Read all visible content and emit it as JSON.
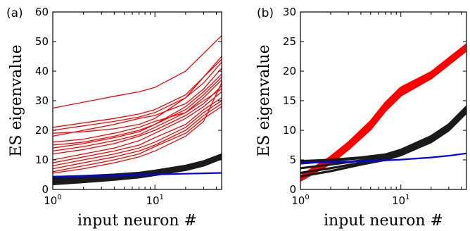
{
  "chart_data": [
    {
      "type": "line",
      "panel_label": "(a)",
      "xlabel": "input neuron #",
      "ylabel": "ES eigenvalue",
      "xscale": "log",
      "xlim": [
        1,
        45
      ],
      "ylim": [
        0,
        60
      ],
      "yticks": [
        "0",
        "10",
        "20",
        "30",
        "40",
        "50",
        "60"
      ],
      "xticks": [
        {
          "base": "10",
          "exp": "0"
        },
        {
          "base": "10",
          "exp": "1"
        }
      ],
      "legend": "none",
      "grid": false,
      "groups": [
        {
          "color": "#ff0000",
          "series": [
            {
              "x": [
                1,
                2,
                4,
                7,
                10,
                20,
                30,
                45
              ],
              "y": [
                27.5,
                29.5,
                31.5,
                33,
                34.5,
                40,
                46,
                52
              ]
            },
            {
              "x": [
                1,
                2,
                4,
                7,
                10,
                20,
                30,
                45
              ],
              "y": [
                20,
                21.5,
                23,
                24.5,
                26,
                31,
                38,
                45
              ]
            },
            {
              "x": [
                1,
                2,
                4,
                7,
                10,
                20,
                30,
                45
              ],
              "y": [
                19,
                19.5,
                20.5,
                22,
                24,
                31,
                36,
                43
              ]
            },
            {
              "x": [
                1,
                2,
                4,
                7,
                10,
                20,
                30,
                45
              ],
              "y": [
                15,
                16,
                18,
                20,
                22,
                28,
                33,
                39
              ]
            },
            {
              "x": [
                1,
                2,
                4,
                7,
                10,
                20,
                30,
                45
              ],
              "y": [
                14,
                15.5,
                17.5,
                19.5,
                22,
                27,
                32,
                38
              ]
            },
            {
              "x": [
                1,
                2,
                4,
                7,
                10,
                20,
                30,
                45
              ],
              "y": [
                13,
                14.5,
                16.5,
                18.5,
                21,
                26,
                31,
                37
              ]
            },
            {
              "x": [
                1,
                2,
                4,
                7,
                10,
                20,
                30,
                45
              ],
              "y": [
                16,
                17,
                19,
                21,
                23,
                26,
                30,
                34
              ]
            },
            {
              "x": [
                1,
                2,
                4,
                7,
                10,
                20,
                30,
                45
              ],
              "y": [
                12,
                13.5,
                15.5,
                18,
                20,
                25,
                29,
                35
              ]
            },
            {
              "x": [
                1,
                2,
                4,
                7,
                10,
                20,
                30,
                45
              ],
              "y": [
                10,
                12,
                14,
                16.5,
                19,
                24,
                28,
                33
              ]
            },
            {
              "x": [
                1,
                2,
                4,
                7,
                10,
                20,
                30,
                45
              ],
              "y": [
                9,
                11,
                13,
                15,
                17.5,
                22,
                27,
                31
              ]
            },
            {
              "x": [
                1,
                2,
                4,
                7,
                10,
                20,
                30,
                45
              ],
              "y": [
                8,
                10,
                12,
                14,
                16,
                21,
                26,
                30
              ]
            },
            {
              "x": [
                1,
                2,
                4,
                7,
                10,
                20,
                30,
                45
              ],
              "y": [
                7,
                9,
                11,
                13,
                15,
                20,
                25,
                29
              ]
            },
            {
              "x": [
                1,
                2,
                4,
                7,
                10,
                20,
                30,
                45
              ],
              "y": [
                6,
                8,
                10,
                12,
                14.5,
                19,
                24,
                28
              ]
            },
            {
              "x": [
                1,
                2,
                4,
                7,
                10,
                20,
                30,
                45
              ],
              "y": [
                5.5,
                7,
                9,
                11,
                13,
                18,
                23,
                36
              ]
            },
            {
              "x": [
                1,
                2,
                4,
                7,
                10,
                20,
                30,
                45
              ],
              "y": [
                18,
                20,
                22,
                24,
                25,
                29,
                34,
                41
              ]
            },
            {
              "x": [
                1,
                2,
                4,
                7,
                10,
                20,
                30,
                45
              ],
              "y": [
                21,
                22.5,
                24,
                25.5,
                27,
                32,
                38,
                44
              ]
            }
          ]
        },
        {
          "color": "#1a1a1a",
          "series": [
            {
              "x": [
                1,
                2,
                4,
                7,
                10,
                20,
                30,
                45
              ],
              "y": [
                4.2,
                4.5,
                5,
                5.6,
                6.3,
                8,
                9.5,
                11.8
              ]
            },
            {
              "x": [
                1,
                2,
                4,
                7,
                10,
                20,
                30,
                45
              ],
              "y": [
                3.8,
                4.1,
                4.6,
                5.2,
                5.9,
                7.6,
                9.1,
                11.3
              ]
            },
            {
              "x": [
                1,
                2,
                4,
                7,
                10,
                20,
                30,
                45
              ],
              "y": [
                3.3,
                3.7,
                4.2,
                4.9,
                5.6,
                7.3,
                8.8,
                11
              ]
            },
            {
              "x": [
                1,
                2,
                4,
                7,
                10,
                20,
                30,
                45
              ],
              "y": [
                2.8,
                3.3,
                3.9,
                4.6,
                5.3,
                7,
                8.5,
                10.8
              ]
            },
            {
              "x": [
                1,
                2,
                4,
                7,
                10,
                20,
                30,
                45
              ],
              "y": [
                2.3,
                2.9,
                3.6,
                4.3,
                5.1,
                6.8,
                8.3,
                10.6
              ]
            },
            {
              "x": [
                1,
                2,
                4,
                7,
                10,
                20,
                30,
                45
              ],
              "y": [
                1.8,
                2.5,
                3.3,
                4.1,
                4.9,
                6.6,
                8.1,
                10.5
              ]
            }
          ]
        },
        {
          "color": "#0000ff",
          "series": [
            {
              "x": [
                1,
                2,
                4,
                7,
                10,
                20,
                30,
                45
              ],
              "y": [
                4.3,
                4.5,
                4.7,
                4.9,
                5.05,
                5.3,
                5.45,
                5.6
              ]
            }
          ]
        }
      ]
    },
    {
      "type": "line",
      "panel_label": "(b)",
      "xlabel": "input neuron #",
      "ylabel": "ES eigenvalue",
      "xscale": "log",
      "xlim": [
        1,
        45
      ],
      "ylim": [
        0,
        30
      ],
      "yticks": [
        "0",
        "5",
        "10",
        "15",
        "20",
        "25",
        "30"
      ],
      "xticks": [
        {
          "base": "10",
          "exp": "0"
        },
        {
          "base": "10",
          "exp": "1"
        }
      ],
      "legend": "none",
      "grid": false,
      "groups": [
        {
          "color": "#ff0000",
          "series": [
            {
              "x": [
                1,
                2,
                3,
                5,
                7,
                10,
                20,
                45
              ],
              "y": [
                1.6,
                4.6,
                7,
                10.5,
                13.6,
                16.2,
                19,
                23.8
              ]
            },
            {
              "x": [
                1,
                2,
                3,
                5,
                7,
                10,
                20,
                45
              ],
              "y": [
                1.8,
                4.9,
                7.3,
                10.9,
                14,
                16.6,
                19.4,
                24.1
              ]
            },
            {
              "x": [
                1,
                2,
                3,
                5,
                7,
                10,
                20,
                45
              ],
              "y": [
                2,
                5.2,
                7.6,
                11.2,
                14.3,
                16.9,
                19.6,
                24.3
              ]
            },
            {
              "x": [
                1,
                2,
                3,
                5,
                7,
                10,
                20,
                45
              ],
              "y": [
                2.2,
                5.5,
                7.9,
                11.5,
                14.6,
                17.2,
                19.8,
                24.5
              ]
            },
            {
              "x": [
                1,
                2,
                3,
                5,
                7,
                10,
                20,
                45
              ],
              "y": [
                1.5,
                4.4,
                6.8,
                10.2,
                13.3,
                15.9,
                18.8,
                23.5
              ]
            }
          ]
        },
        {
          "color": "#1a1a1a",
          "series": [
            {
              "x": [
                1,
                2,
                4,
                7,
                10,
                20,
                30,
                45
              ],
              "y": [
                4.4,
                4.8,
                5.3,
                5.8,
                6.6,
                8.8,
                10.8,
                13.8
              ]
            },
            {
              "x": [
                1,
                2,
                4,
                7,
                10,
                20,
                30,
                45
              ],
              "y": [
                3.6,
                4.2,
                4.9,
                5.5,
                6.3,
                8.5,
                10.5,
                13.5
              ]
            },
            {
              "x": [
                1,
                2,
                4,
                7,
                10,
                20,
                30,
                45
              ],
              "y": [
                2.8,
                3.6,
                4.5,
                5.2,
                6,
                8.2,
                10.2,
                13.2
              ]
            },
            {
              "x": [
                1,
                2,
                4,
                7,
                10,
                20,
                30,
                45
              ],
              "y": [
                2.2,
                3.1,
                4.2,
                5,
                5.8,
                8,
                10,
                13
              ]
            },
            {
              "x": [
                1,
                2,
                4,
                7,
                10,
                20,
                30,
                45
              ],
              "y": [
                4.8,
                5,
                5.4,
                5.9,
                6.7,
                9,
                11,
                14
              ]
            }
          ]
        },
        {
          "color": "#0000ff",
          "series": [
            {
              "x": [
                1,
                2,
                4,
                7,
                10,
                20,
                30,
                45
              ],
              "y": [
                4.5,
                4.6,
                4.75,
                4.9,
                5.05,
                5.4,
                5.7,
                6.1
              ]
            }
          ]
        }
      ]
    }
  ]
}
